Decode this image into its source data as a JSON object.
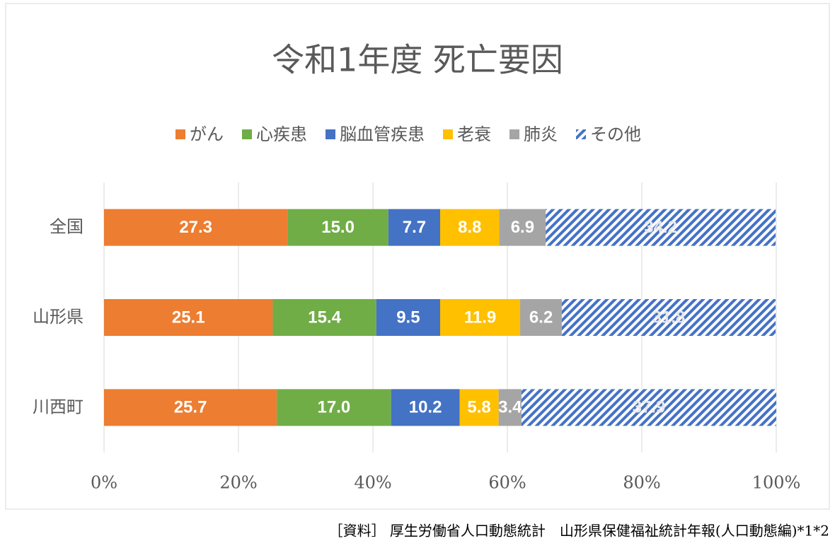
{
  "chart_data": {
    "type": "stacked_bar_h",
    "title": "令和1年度 死亡要因",
    "categories": [
      "全国",
      "山形県",
      "川西町"
    ],
    "series": [
      {
        "name": "がん",
        "color": "#ed7d31",
        "values": [
          27.3,
          25.1,
          25.7
        ]
      },
      {
        "name": "心疾患",
        "color": "#70ad47",
        "values": [
          15.0,
          15.4,
          17.0
        ],
        "value_labels": [
          "15.0",
          "15.4",
          "17.0"
        ]
      },
      {
        "name": "脳血管疾患",
        "color": "#4472c4",
        "values": [
          7.7,
          9.5,
          10.2
        ]
      },
      {
        "name": "老衰",
        "color": "#ffc000",
        "values": [
          8.8,
          11.9,
          5.8
        ]
      },
      {
        "name": "肺炎",
        "color": "#a5a5a5",
        "values": [
          6.9,
          6.2,
          3.4
        ]
      },
      {
        "name": "その他",
        "color": "#4472c4",
        "hatch": true,
        "values": [
          34.2,
          31.8,
          37.9
        ]
      }
    ],
    "xlim": [
      0,
      100
    ],
    "xticks": [
      {
        "value": 0,
        "label": "0%"
      },
      {
        "value": 20,
        "label": "20%"
      },
      {
        "value": 40,
        "label": "40%"
      },
      {
        "value": 60,
        "label": "60%"
      },
      {
        "value": 80,
        "label": "80%"
      },
      {
        "value": 100,
        "label": "100%"
      }
    ],
    "grid": true,
    "legend": "top",
    "source": "［資料］ 厚生労働省人口動態統計　山形県保健福祉統計年報(人口動態編)*1*2"
  }
}
